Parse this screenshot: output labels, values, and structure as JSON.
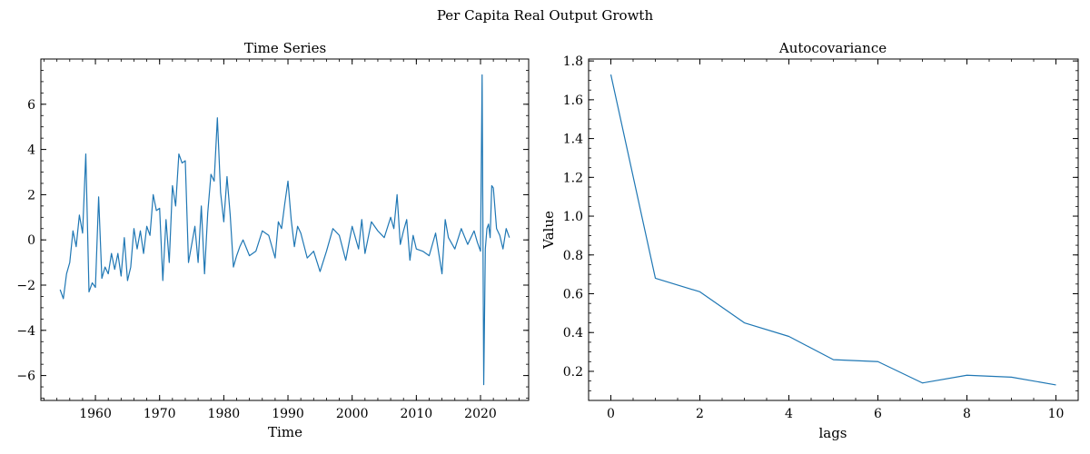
{
  "figure": {
    "suptitle": "Per Capita Real Output Growth"
  },
  "style": {
    "line_color": "#1f77b4",
    "axis_color": "#000000",
    "background": "#ffffff"
  },
  "chart_data": [
    {
      "type": "line",
      "title": "Time Series",
      "xlabel": "Time",
      "ylabel": "",
      "xlim": [
        1951.5,
        2027.5
      ],
      "ylim": [
        -7.1,
        8.0
      ],
      "xticks": [
        1960,
        1970,
        1980,
        1990,
        2000,
        2010,
        2020
      ],
      "yticks": [
        -6,
        -4,
        -2,
        0,
        2,
        4,
        6
      ],
      "ytick_labels": [
        "−6",
        "−4",
        "−2",
        "0",
        "2",
        "4",
        "6"
      ],
      "grid": false,
      "series": [
        {
          "x": [
            1954.5,
            1955,
            1955.5,
            1956,
            1956.5,
            1957,
            1957.5,
            1958,
            1958.5,
            1959,
            1959.5,
            1960,
            1960.5,
            1961,
            1961.5,
            1962,
            1962.5,
            1963,
            1963.5,
            1964,
            1964.5,
            1965,
            1965.5,
            1966,
            1966.5,
            1967,
            1967.5,
            1968,
            1968.5,
            1969,
            1969.5,
            1970,
            1970.5,
            1971,
            1971.5,
            1972,
            1972.5,
            1973,
            1973.5,
            1974,
            1974.5,
            1975,
            1975.5,
            1976,
            1976.5,
            1977,
            1977.5,
            1978,
            1978.5,
            1979,
            1979.5,
            1980,
            1980.5,
            1981,
            1981.5,
            1982,
            1982.5,
            1983,
            1984,
            1985,
            1986,
            1987,
            1988,
            1988.5,
            1989,
            1989.5,
            1990,
            1990.5,
            1991,
            1991.5,
            1992,
            1993,
            1994,
            1995,
            1996,
            1997,
            1998,
            1999,
            2000,
            2001,
            2001.5,
            2002,
            2003,
            2004,
            2005,
            2006,
            2006.5,
            2007,
            2007.5,
            2008,
            2008.5,
            2009,
            2009.5,
            2010,
            2011,
            2012,
            2013,
            2014,
            2014.5,
            2015,
            2016,
            2017,
            2018,
            2019,
            2019.5,
            2020,
            2020.25,
            2020.5,
            2020.75,
            2021,
            2021.25,
            2021.5,
            2021.75,
            2022,
            2022.5,
            2023,
            2023.5,
            2024,
            2024.5
          ],
          "y": [
            -2.2,
            -2.6,
            -1.5,
            -1,
            0.4,
            -0.3,
            1.1,
            0.3,
            3.8,
            -2.3,
            -1.9,
            -2.1,
            1.9,
            -1.7,
            -1.2,
            -1.5,
            -0.6,
            -1.3,
            -0.6,
            -1.6,
            0.1,
            -1.8,
            -1.2,
            0.5,
            -0.4,
            0.4,
            -0.6,
            0.6,
            0.2,
            2,
            1.3,
            1.4,
            -1.8,
            0.9,
            -1,
            2.4,
            1.5,
            3.8,
            3.4,
            3.5,
            -1,
            -0.2,
            0.6,
            -1,
            1.5,
            -1.5,
            1.2,
            2.9,
            2.6,
            5.4,
            2.1,
            0.8,
            2.8,
            1.1,
            -1.2,
            -0.7,
            -0.3,
            0,
            -0.7,
            -0.5,
            0.4,
            0.2,
            -0.8,
            0.8,
            0.5,
            1.6,
            2.6,
            0.9,
            -0.3,
            0.6,
            0.3,
            -0.8,
            -0.5,
            -1.4,
            -0.5,
            0.5,
            0.2,
            -0.9,
            0.6,
            -0.4,
            0.9,
            -0.6,
            0.8,
            0.4,
            0.1,
            1,
            0.5,
            2,
            -0.2,
            0.4,
            0.9,
            -0.9,
            0.2,
            -0.4,
            -0.5,
            -0.7,
            0.3,
            -1.5,
            0.9,
            0.1,
            -0.4,
            0.5,
            -0.2,
            0.4,
            -0.1,
            -0.5,
            7.3,
            -6.4,
            -0.4,
            0.5,
            0.7,
            0.1,
            2.4,
            2.3,
            0.5,
            0.2,
            -0.4,
            0.5,
            0.1
          ]
        }
      ]
    },
    {
      "type": "line",
      "title": "Autocovariance",
      "xlabel": "lags",
      "ylabel": "Value",
      "xlim": [
        -0.5,
        10.5
      ],
      "ylim": [
        0.05,
        1.81
      ],
      "xticks": [
        0,
        2,
        4,
        6,
        8,
        10
      ],
      "yticks": [
        0.2,
        0.4,
        0.6,
        0.8,
        1.0,
        1.2,
        1.4,
        1.6,
        1.8
      ],
      "ytick_labels": [
        "0.2",
        "0.4",
        "0.6",
        "0.8",
        "1.0",
        "1.2",
        "1.4",
        "1.6",
        "1.8"
      ],
      "grid": false,
      "series": [
        {
          "x": [
            0,
            1,
            2,
            3,
            4,
            5,
            6,
            7,
            8,
            9,
            10
          ],
          "y": [
            1.73,
            0.68,
            0.61,
            0.45,
            0.38,
            0.26,
            0.25,
            0.14,
            0.18,
            0.17,
            0.13
          ]
        }
      ]
    }
  ]
}
